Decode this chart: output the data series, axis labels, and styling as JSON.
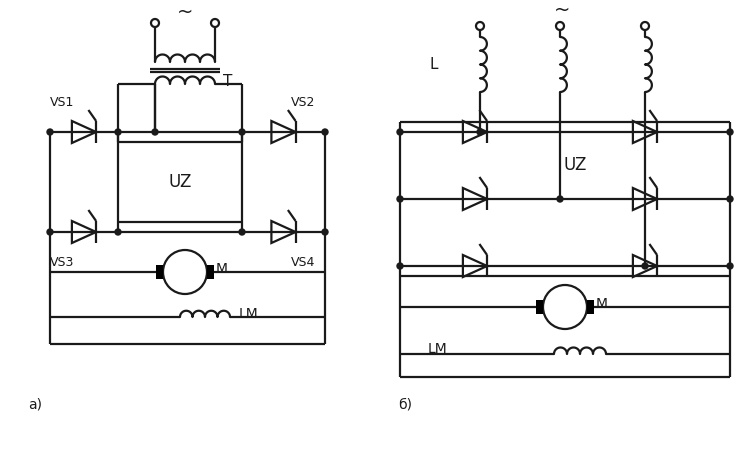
{
  "bg_color": "#ffffff",
  "line_color": "#1a1a1a",
  "line_width": 1.6,
  "fig_width": 7.5,
  "fig_height": 4.62,
  "label_a": "a)",
  "label_b": "б)",
  "label_T": "T",
  "label_UZ_a": "UZ",
  "label_UZ_b": "UZ",
  "label_VS1": "VS1",
  "label_VS2": "VS2",
  "label_VS3": "VS3",
  "label_VS4": "VS4",
  "label_M_a": "M",
  "label_M_b": "M",
  "label_LM_a": "LM",
  "label_LM_b": "LM",
  "label_L": "L",
  "label_tilde": "~"
}
